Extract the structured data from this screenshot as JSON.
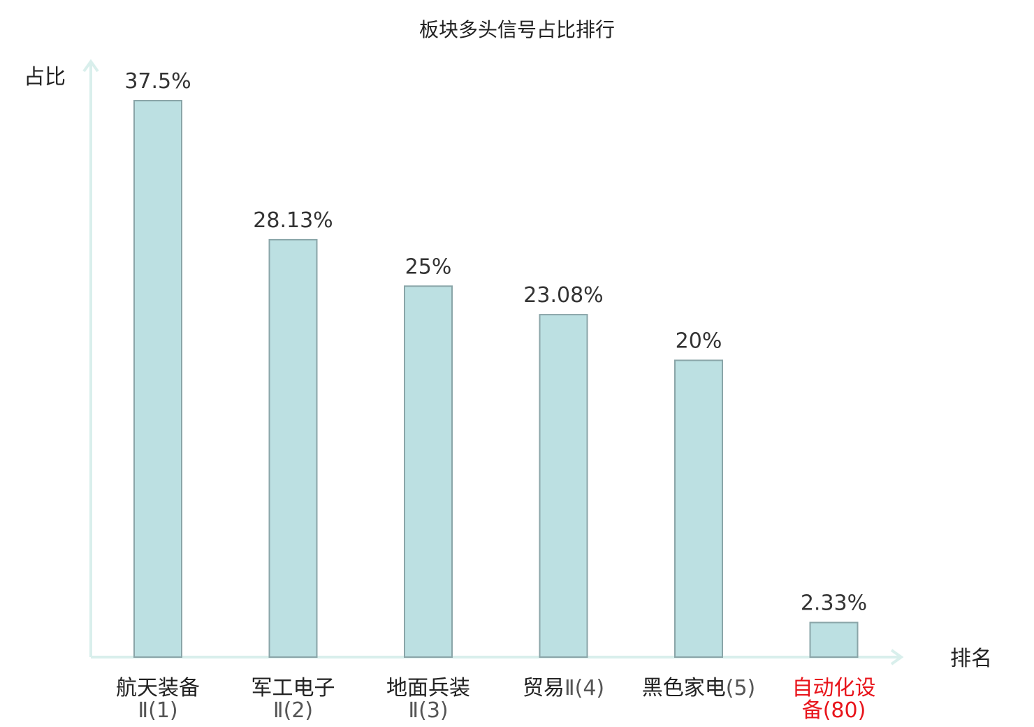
{
  "chart_data": {
    "type": "bar",
    "title": "板块多头信号占比排行",
    "ylabel": "占比",
    "xlabel": "排名",
    "ylim": [
      0,
      40
    ],
    "bar_color": "#bce0e2",
    "bar_stroke": "#8aa5a8",
    "axis_color": "#d9efec",
    "highlight_color": "#e8141b",
    "categories": [
      {
        "name": "航天装备",
        "rank": "Ⅱ(1)",
        "value": 37.5,
        "label": "37.5%",
        "highlight": false
      },
      {
        "name": "军工电子",
        "rank": "Ⅱ(2)",
        "value": 28.13,
        "label": "28.13%",
        "highlight": false
      },
      {
        "name": "地面兵装",
        "rank": "Ⅱ(3)",
        "value": 25,
        "label": "25%",
        "highlight": false
      },
      {
        "name": "贸易",
        "rank": "Ⅱ(4)",
        "value": 23.08,
        "label": "23.08%",
        "highlight": false
      },
      {
        "name": "黑色家电",
        "rank": "(5)",
        "value": 20,
        "label": "20%",
        "highlight": false
      },
      {
        "name": "自动化设",
        "rank": "备(80)",
        "value": 2.33,
        "label": "2.33%",
        "highlight": true
      }
    ]
  }
}
